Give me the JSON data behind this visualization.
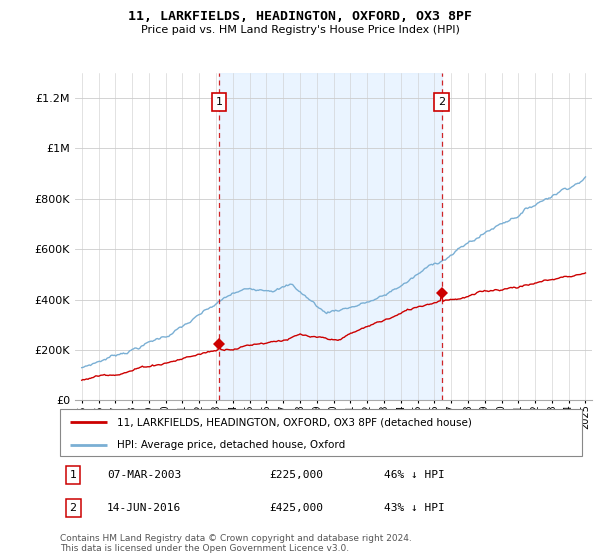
{
  "title": "11, LARKFIELDS, HEADINGTON, OXFORD, OX3 8PF",
  "subtitle": "Price paid vs. HM Land Registry's House Price Index (HPI)",
  "legend_label_red": "11, LARKFIELDS, HEADINGTON, OXFORD, OX3 8PF (detached house)",
  "legend_label_blue": "HPI: Average price, detached house, Oxford",
  "annotation1_label": "1",
  "annotation1_date": "07-MAR-2003",
  "annotation1_price": "£225,000",
  "annotation1_pct": "46% ↓ HPI",
  "annotation2_label": "2",
  "annotation2_date": "14-JUN-2016",
  "annotation2_price": "£425,000",
  "annotation2_pct": "43% ↓ HPI",
  "footer": "Contains HM Land Registry data © Crown copyright and database right 2024.\nThis data is licensed under the Open Government Licence v3.0.",
  "red_color": "#cc0000",
  "blue_color": "#7aafd4",
  "blue_fill": "#ddeeff",
  "vline_color": "#cc0000",
  "ylim": [
    0,
    1300000
  ],
  "yticks": [
    0,
    200000,
    400000,
    600000,
    800000,
    1000000,
    1200000
  ],
  "ytick_labels": [
    "£0",
    "£200K",
    "£400K",
    "£600K",
    "£800K",
    "£1M",
    "£1.2M"
  ],
  "year_start": 1995,
  "year_end": 2025,
  "sale1_year": 2003.18,
  "sale1_price": 225000,
  "sale2_year": 2016.45,
  "sale2_price": 425000
}
